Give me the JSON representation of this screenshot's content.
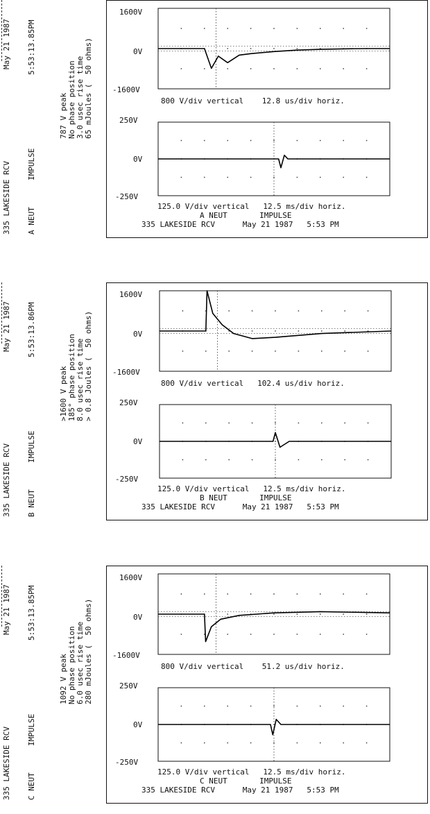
{
  "panels": [
    {
      "header_location": "335 LAKESIDE RCV",
      "header_channel": "A NEUT",
      "header_event": "IMPULSE",
      "header_date": "May 21 1987",
      "header_time": "5:53:13.85PM",
      "stats": [
        "787 V peak",
        "No phase position",
        "3.0 usec rise time",
        "65 mJoules (  50 ohms)"
      ],
      "top": {
        "ymax_label": "1600V",
        "yzero_label": "0V",
        "ymin_label": "-1600V",
        "scale_label": "800 V/div vertical    12.8 us/div horiz."
      },
      "bottom": {
        "ymax_label": "250V",
        "yzero_label": "0V",
        "ymin_label": "-250V",
        "scale_label": "125.0 V/div vertical   12.5 ms/div horiz."
      },
      "footer_line1": "A NEUT       IMPULSE",
      "footer_line2": "335 LAKESIDE RCV      May 21 1987   5:53 PM"
    },
    {
      "header_location": "335 LAKESIDE RCV",
      "header_channel": "B NEUT",
      "header_event": "IMPULSE",
      "header_date": "May 21 1987",
      "header_time": "5:53:13.86PM",
      "stats": [
        ">1600 V peak",
        "185° phase position",
        "8.0 usec rise time",
        "> 0.8 Joules (  50 ohms)"
      ],
      "top": {
        "ymax_label": "1600V",
        "yzero_label": "0V",
        "ymin_label": "-1600V",
        "scale_label": "800 V/div vertical   102.4 us/div horiz."
      },
      "bottom": {
        "ymax_label": "250V",
        "yzero_label": "0V",
        "ymin_label": "-250V",
        "scale_label": "125.0 V/div vertical   12.5 ms/div horiz."
      },
      "footer_line1": "B NEUT       IMPULSE",
      "footer_line2": "335 LAKESIDE RCV      May 21 1987   5:53 PM"
    },
    {
      "header_location": "335 LAKESIDE RCV",
      "header_channel": "C NEUT",
      "header_event": "IMPULSE",
      "header_date": "May 21 1987",
      "header_time": "5:53:13.85PM",
      "stats": [
        "1092 V peak",
        "No phase position",
        "6.0 usec rise time",
        "280 mJoules (  50 ohms)"
      ],
      "top": {
        "ymax_label": "1600V",
        "yzero_label": "0V",
        "ymin_label": "-1600V",
        "scale_label": "800 V/div vertical    51.2 us/div horiz."
      },
      "bottom": {
        "ymax_label": "250V",
        "yzero_label": "0V",
        "ymin_label": "-250V",
        "scale_label": "125.0 V/div vertical   12.5 ms/div horiz."
      },
      "footer_line1": "C NEUT       IMPULSE",
      "footer_line2": "335 LAKESIDE RCV      May 21 1987   5:53 PM"
    }
  ],
  "chart_data": [
    {
      "type": "line",
      "channel": "A NEUT",
      "view": "impulse",
      "x": [
        0,
        1,
        2,
        2.3,
        2.6,
        3,
        3.5,
        4,
        5,
        6,
        7,
        8,
        9,
        10
      ],
      "values": [
        0,
        0,
        0,
        -787,
        -300,
        -560,
        -260,
        -200,
        -120,
        -60,
        -30,
        -10,
        0,
        0
      ],
      "xunit": "div",
      "ylim": [
        -1600,
        1600
      ],
      "grid": true
    },
    {
      "type": "line",
      "channel": "A NEUT",
      "view": "cycle",
      "x": [
        0,
        5.2,
        5.3,
        5.45,
        5.6,
        10
      ],
      "values": [
        0,
        0,
        -60,
        25,
        0,
        0
      ],
      "xunit": "div",
      "ylim": [
        -250,
        250
      ],
      "grid": true
    },
    {
      "type": "line",
      "channel": "B NEUT",
      "view": "impulse",
      "x": [
        0,
        2,
        2.05,
        2.3,
        2.7,
        3.2,
        4,
        5,
        7,
        10
      ],
      "values": [
        0,
        0,
        1600,
        700,
        250,
        -100,
        -300,
        -250,
        -100,
        0
      ],
      "xunit": "div",
      "ylim": [
        -1600,
        1600
      ],
      "grid": true
    },
    {
      "type": "line",
      "channel": "B NEUT",
      "view": "cycle",
      "x": [
        0,
        4.9,
        5.0,
        5.2,
        5.6,
        10
      ],
      "values": [
        0,
        0,
        60,
        -40,
        0,
        0
      ],
      "xunit": "div",
      "ylim": [
        -250,
        250
      ],
      "grid": true
    },
    {
      "type": "line",
      "channel": "C NEUT",
      "view": "impulse",
      "x": [
        0,
        2,
        2.05,
        2.3,
        2.7,
        3.5,
        5,
        7,
        10
      ],
      "values": [
        0,
        0,
        -1092,
        -500,
        -200,
        -50,
        50,
        100,
        50
      ],
      "xunit": "div",
      "ylim": [
        -1600,
        1600
      ],
      "grid": true
    },
    {
      "type": "line",
      "channel": "C NEUT",
      "view": "cycle",
      "x": [
        0,
        4.85,
        4.95,
        5.1,
        5.3,
        10
      ],
      "values": [
        0,
        0,
        -70,
        35,
        0,
        0
      ],
      "xunit": "div",
      "ylim": [
        -250,
        250
      ],
      "grid": true
    }
  ]
}
